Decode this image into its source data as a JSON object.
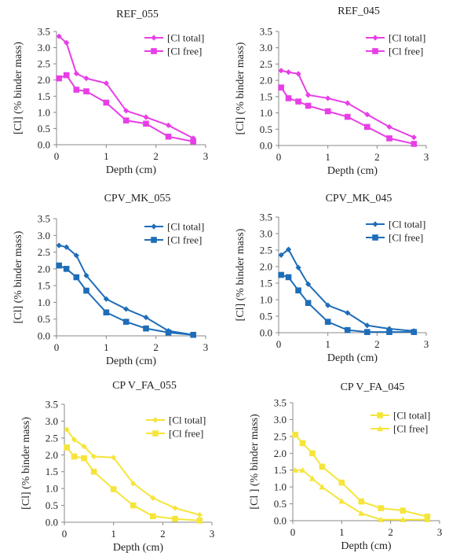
{
  "chart_data": [
    {
      "type": "line",
      "title": "REF_055",
      "xlabel": "Depth (cm)",
      "ylabel": "[Cl] (% binder mass)",
      "xlim": [
        0,
        3
      ],
      "ylim": [
        0,
        3.5
      ],
      "xticks": [
        "0",
        "1",
        "2",
        "3"
      ],
      "yticks": [
        "0.0",
        "0.5",
        "1.0",
        "1.5",
        "2.0",
        "2.5",
        "3.0",
        "3.5"
      ],
      "legend": "top-right",
      "series": [
        {
          "name": "[Cl total]",
          "marker": "diamond",
          "color": "#e83ee6",
          "x": [
            0.05,
            0.2,
            0.4,
            0.6,
            1.0,
            1.4,
            1.8,
            2.25,
            2.75
          ],
          "y": [
            3.35,
            3.15,
            2.2,
            2.05,
            1.9,
            1.05,
            0.85,
            0.6,
            0.2
          ]
        },
        {
          "name": "[Cl free]",
          "marker": "square",
          "color": "#e83ee6",
          "x": [
            0.05,
            0.2,
            0.4,
            0.6,
            1.0,
            1.4,
            1.8,
            2.25,
            2.75
          ],
          "y": [
            2.05,
            2.15,
            1.7,
            1.65,
            1.3,
            0.75,
            0.65,
            0.25,
            0.1
          ]
        }
      ]
    },
    {
      "type": "line",
      "title": "REF_045",
      "xlabel": "Depth (cm)",
      "ylabel": "[Cl] (% binder mass)",
      "xlim": [
        0,
        3
      ],
      "ylim": [
        0,
        3.5
      ],
      "xticks": [
        "0",
        "1",
        "2",
        "3"
      ],
      "yticks": [
        "0.0",
        "0.5",
        "1.0",
        "1.5",
        "2.0",
        "2.5",
        "3.0",
        "3.5"
      ],
      "legend": "top-right",
      "series": [
        {
          "name": "[Cl total]",
          "marker": "diamond",
          "color": "#e83ee6",
          "x": [
            0.05,
            0.2,
            0.4,
            0.6,
            1.0,
            1.4,
            1.8,
            2.25,
            2.75
          ],
          "y": [
            2.3,
            2.25,
            2.2,
            1.55,
            1.45,
            1.3,
            0.95,
            0.57,
            0.25
          ]
        },
        {
          "name": "[Cl free]",
          "marker": "square",
          "color": "#e83ee6",
          "x": [
            0.05,
            0.2,
            0.4,
            0.6,
            1.0,
            1.4,
            1.8,
            2.25,
            2.75
          ],
          "y": [
            1.78,
            1.45,
            1.35,
            1.22,
            1.05,
            0.88,
            0.57,
            0.22,
            0.05
          ]
        }
      ]
    },
    {
      "type": "line",
      "title": "CPV_MK_055",
      "xlabel": "Depth (cm)",
      "ylabel": "[Cl] (% binder mass)",
      "xlim": [
        0,
        3
      ],
      "ylim": [
        0,
        3.5
      ],
      "xticks": [
        "0",
        "1",
        "2",
        "3"
      ],
      "yticks": [
        "0.0",
        "0.5",
        "1.0",
        "1.5",
        "2.0",
        "2.5",
        "3.0",
        "3.5"
      ],
      "legend": "top-right",
      "series": [
        {
          "name": "[Cl total]",
          "marker": "diamond",
          "color": "#1e6db8",
          "x": [
            0.05,
            0.2,
            0.4,
            0.6,
            1.0,
            1.4,
            1.8,
            2.25,
            2.75
          ],
          "y": [
            2.7,
            2.65,
            2.4,
            1.8,
            1.1,
            0.8,
            0.55,
            0.15,
            0.03
          ]
        },
        {
          "name": "[Cl free]",
          "marker": "square",
          "color": "#1e6db8",
          "x": [
            0.05,
            0.2,
            0.4,
            0.6,
            1.0,
            1.4,
            1.8,
            2.25,
            2.75
          ],
          "y": [
            2.1,
            2.0,
            1.75,
            1.35,
            0.7,
            0.42,
            0.22,
            0.1,
            0.03
          ]
        }
      ]
    },
    {
      "type": "line",
      "title": "CPV_MK_045",
      "xlabel": "Depth (cm)",
      "ylabel": "[Cl] (% binder mass)",
      "xlim": [
        0,
        3
      ],
      "ylim": [
        0,
        3.5
      ],
      "xticks": [
        "0",
        "1",
        "2",
        "3"
      ],
      "yticks": [
        "0.0",
        "0.5",
        "1.0",
        "1.5",
        "2.0",
        "2.5",
        "3.0",
        "3.5"
      ],
      "legend": "top-right",
      "series": [
        {
          "name": "[Cl total]",
          "marker": "diamond",
          "color": "#1e6db8",
          "x": [
            0.05,
            0.2,
            0.4,
            0.6,
            1.0,
            1.4,
            1.8,
            2.25,
            2.75
          ],
          "y": [
            2.35,
            2.52,
            1.97,
            1.47,
            0.83,
            0.6,
            0.22,
            0.12,
            0.05
          ]
        },
        {
          "name": "[Cl free]",
          "marker": "square",
          "color": "#1e6db8",
          "x": [
            0.05,
            0.2,
            0.4,
            0.6,
            1.0,
            1.4,
            1.8,
            2.25,
            2.75
          ],
          "y": [
            1.75,
            1.68,
            1.28,
            0.9,
            0.33,
            0.08,
            0.02,
            0.02,
            0.02
          ]
        }
      ]
    },
    {
      "type": "line",
      "title": "CP V_FA_055",
      "xlabel": "Depth (cm)",
      "ylabel": "[Cl] (% binder mass)",
      "xlim": [
        0,
        3
      ],
      "ylim": [
        0,
        3.5
      ],
      "xticks": [
        "0",
        "1",
        "2",
        "3"
      ],
      "yticks": [
        "0.0",
        "0.5",
        "1.0",
        "1.5",
        "2.0",
        "2.5",
        "3.0",
        "3.5"
      ],
      "legend": "top-right",
      "series": [
        {
          "name": "[Cl total]",
          "marker": "diamond",
          "color": "#f5e53a",
          "x": [
            0.05,
            0.2,
            0.4,
            0.6,
            1.0,
            1.4,
            1.8,
            2.25,
            2.75
          ],
          "y": [
            2.75,
            2.45,
            2.25,
            1.95,
            1.92,
            1.15,
            0.72,
            0.42,
            0.22
          ]
        },
        {
          "name": "[Cl free]",
          "marker": "square",
          "color": "#f5e53a",
          "x": [
            0.05,
            0.2,
            0.4,
            0.6,
            1.0,
            1.4,
            1.8,
            2.25,
            2.75
          ],
          "y": [
            2.22,
            1.95,
            1.9,
            1.5,
            0.98,
            0.5,
            0.18,
            0.1,
            0.05
          ]
        }
      ]
    },
    {
      "type": "line",
      "title": "CP V_FA_045",
      "xlabel": "Depth (cm)",
      "ylabel": "[Cl ] (% binder mass)",
      "xlim": [
        0,
        3
      ],
      "ylim": [
        0,
        3.5
      ],
      "xticks": [
        "0",
        "1",
        "2",
        "3"
      ],
      "yticks": [
        "0.0",
        "0.5",
        "1.0",
        "1.5",
        "2.0",
        "2.5",
        "3.0",
        "3.5"
      ],
      "legend": "top-right",
      "series": [
        {
          "name": "[Cl total]",
          "marker": "square",
          "color": "#f5e53a",
          "x": [
            0.05,
            0.2,
            0.4,
            0.6,
            1.0,
            1.4,
            1.8,
            2.25,
            2.75
          ],
          "y": [
            2.55,
            2.3,
            2.0,
            1.6,
            1.13,
            0.57,
            0.37,
            0.3,
            0.12
          ]
        },
        {
          "name": "[Cl free]",
          "marker": "triangle",
          "color": "#f5e53a",
          "x": [
            0.05,
            0.2,
            0.4,
            0.6,
            1.0,
            1.4,
            1.8,
            2.25,
            2.75
          ],
          "y": [
            1.5,
            1.5,
            1.25,
            1.0,
            0.58,
            0.22,
            0.03,
            0.03,
            0.03
          ]
        }
      ]
    }
  ]
}
